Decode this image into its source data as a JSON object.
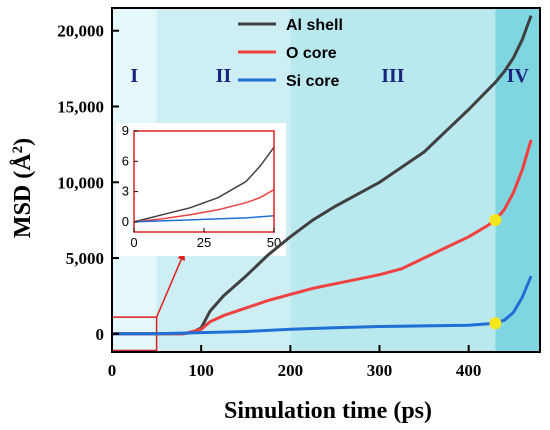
{
  "chart_data": {
    "type": "line",
    "title": "",
    "xlabel": "Simulation time (ps)",
    "ylabel": "MSD (Å²)",
    "ylabel_main": "MSD (Å",
    "ylabel_sup": "2",
    "ylabel_end": ")",
    "xlim": [
      0,
      480
    ],
    "ylim": [
      -1200,
      21500
    ],
    "xticks": [
      0,
      100,
      200,
      300,
      400
    ],
    "xtick_labels": [
      "0",
      "100",
      "200",
      "300",
      "400"
    ],
    "yticks": [
      0,
      5000,
      10000,
      15000,
      20000
    ],
    "ytick_labels": [
      "0",
      "5,000",
      "10,000",
      "15,000",
      "20,000"
    ],
    "grid": false,
    "legend_position": "top-center",
    "regions": [
      {
        "label": "I",
        "x0": 0,
        "x1": 50,
        "color": "#e4f7f9"
      },
      {
        "label": "II",
        "x0": 50,
        "x1": 200,
        "color": "#cdeff3"
      },
      {
        "label": "III",
        "x0": 200,
        "x1": 430,
        "color": "#b9e9ef"
      },
      {
        "label": "IV",
        "x0": 430,
        "x1": 480,
        "color": "#7fd6e0"
      }
    ],
    "series": [
      {
        "name": "Al shell",
        "color": "#404040",
        "x": [
          0,
          50,
          80,
          90,
          100,
          110,
          125,
          150,
          175,
          200,
          225,
          250,
          275,
          300,
          325,
          350,
          375,
          400,
          420,
          430,
          440,
          450,
          460,
          470
        ],
        "y": [
          0,
          0,
          0,
          100,
          400,
          1500,
          2500,
          3800,
          5200,
          6400,
          7500,
          8400,
          9200,
          10000,
          11000,
          12000,
          13400,
          14800,
          16000,
          16600,
          17300,
          18200,
          19400,
          21000
        ]
      },
      {
        "name": "O core",
        "color": "#f04040",
        "x": [
          0,
          50,
          80,
          100,
          110,
          125,
          150,
          175,
          200,
          225,
          250,
          275,
          300,
          325,
          350,
          375,
          400,
          420,
          430,
          440,
          450,
          460,
          470
        ],
        "y": [
          0,
          0,
          0,
          300,
          800,
          1200,
          1700,
          2200,
          2600,
          3000,
          3300,
          3600,
          3900,
          4300,
          5000,
          5700,
          6400,
          7100,
          7500,
          8200,
          9300,
          10800,
          12800
        ]
      },
      {
        "name": "Si core",
        "color": "#1f6fd6",
        "x": [
          0,
          50,
          100,
          150,
          200,
          250,
          300,
          350,
          400,
          430,
          440,
          450,
          460,
          470
        ],
        "y": [
          0,
          0,
          80,
          150,
          300,
          400,
          480,
          520,
          560,
          700,
          900,
          1400,
          2400,
          3800
        ]
      }
    ],
    "markers": [
      {
        "x": 430,
        "y": 7500,
        "color": "#f5e61b"
      },
      {
        "x": 430,
        "y": 700,
        "color": "#f5e61b"
      }
    ],
    "inset": {
      "xlim": [
        0,
        50
      ],
      "ylim": [
        -1,
        9
      ],
      "xticks": [
        0,
        25,
        50
      ],
      "xtick_labels": [
        "0",
        "25",
        "50"
      ],
      "yticks": [
        0,
        3,
        6,
        9
      ],
      "ytick_labels": [
        "0",
        "3",
        "6",
        "9"
      ],
      "series": [
        {
          "name": "Al shell",
          "x": [
            0,
            10,
            20,
            30,
            40,
            45,
            50
          ],
          "y": [
            0,
            0.7,
            1.4,
            2.4,
            4.0,
            5.5,
            7.4
          ]
        },
        {
          "name": "O core",
          "x": [
            0,
            10,
            20,
            30,
            40,
            45,
            50
          ],
          "y": [
            0,
            0.3,
            0.7,
            1.2,
            1.9,
            2.4,
            3.2
          ]
        },
        {
          "name": "Si core",
          "x": [
            0,
            10,
            20,
            30,
            40,
            50
          ],
          "y": [
            0,
            0.1,
            0.2,
            0.3,
            0.4,
            0.6
          ]
        }
      ],
      "zoom_box": {
        "x0": 0,
        "x1": 50,
        "y0": -1100,
        "y1": 1100
      },
      "zoom_color": "#e02020"
    }
  }
}
